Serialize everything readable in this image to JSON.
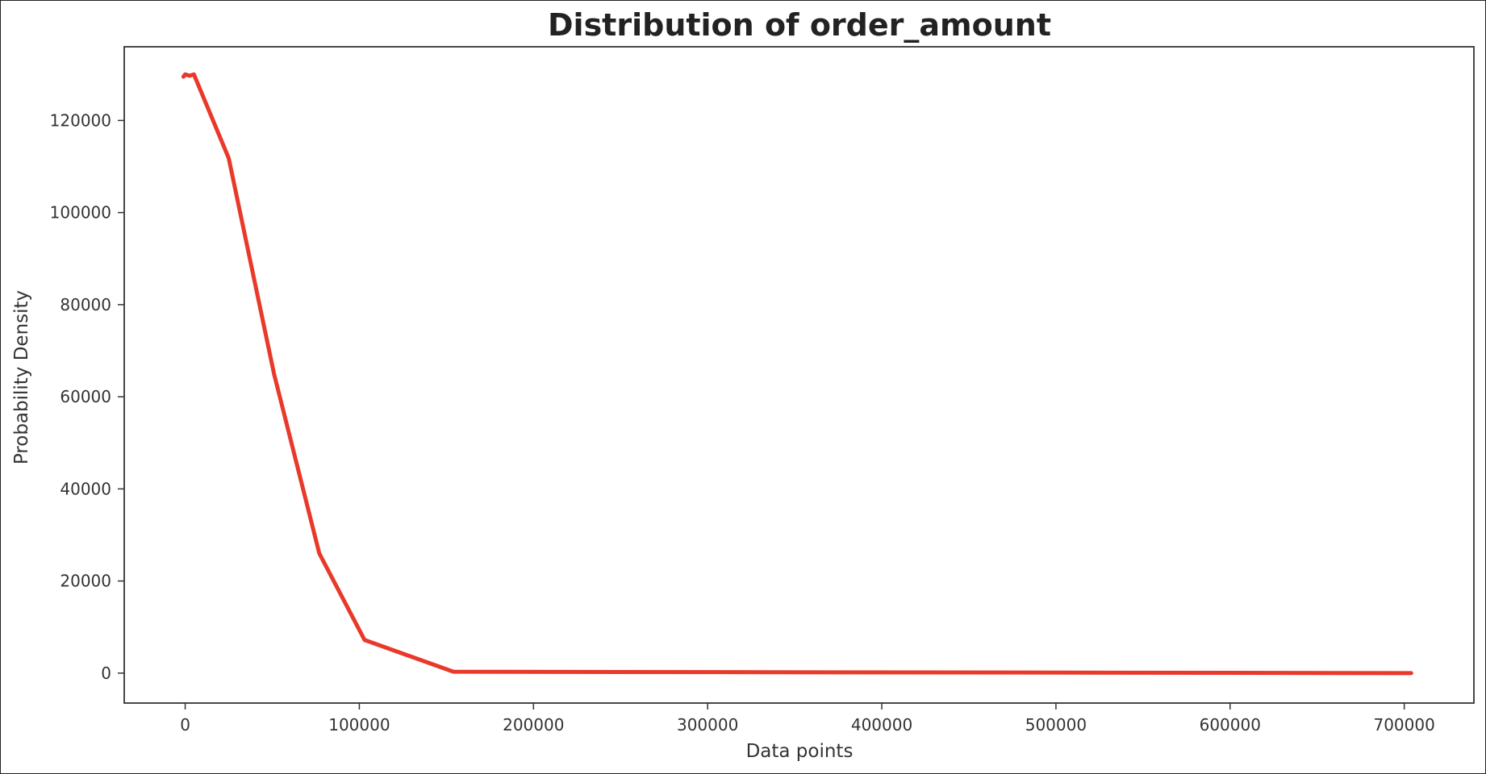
{
  "chart_data": {
    "type": "line",
    "title": "Distribution of order_amount",
    "xlabel": "Data points",
    "ylabel": "Probability Density",
    "xlim": [
      -35000,
      740000
    ],
    "ylim": [
      -6500,
      136000
    ],
    "x_ticks": [
      0,
      100000,
      200000,
      300000,
      400000,
      500000,
      600000,
      700000
    ],
    "x_tick_labels": [
      "0",
      "100000",
      "200000",
      "300000",
      "400000",
      "500000",
      "600000",
      "700000"
    ],
    "y_ticks": [
      0,
      20000,
      40000,
      60000,
      80000,
      100000,
      120000
    ],
    "y_tick_labels": [
      "0",
      "20000",
      "40000",
      "60000",
      "80000",
      "100000",
      "120000"
    ],
    "grid": false,
    "series": [
      {
        "color": "#e8392a",
        "x": [
          -1000,
          0,
          2500,
          5000,
          25000,
          51000,
          77000,
          103000,
          154000,
          704000
        ],
        "y": [
          129500,
          130000,
          129700,
          130000,
          111800,
          65000,
          26000,
          7200,
          300,
          0
        ]
      }
    ]
  }
}
